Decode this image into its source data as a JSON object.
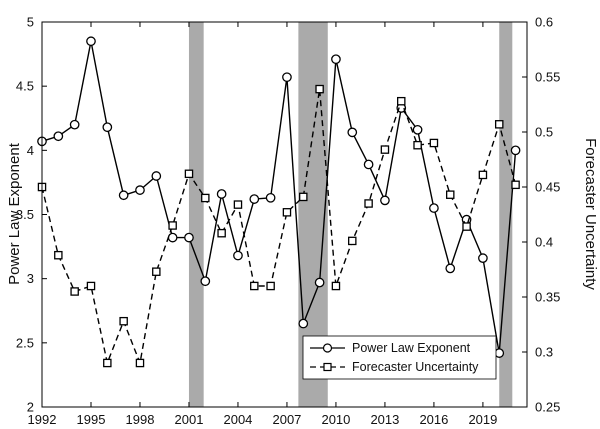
{
  "chart_data": {
    "type": "line",
    "ylabel": "Power Law Exponent",
    "y2label": "Forecaster Uncertainty",
    "xlim": [
      1992,
      2021.7
    ],
    "ylim": [
      2,
      5
    ],
    "y2lim": [
      0.25,
      0.6
    ],
    "xticks": [
      1992,
      1995,
      1998,
      2001,
      2004,
      2007,
      2010,
      2013,
      2016,
      2019
    ],
    "yticks": [
      2,
      2.5,
      3,
      3.5,
      4,
      4.5,
      5
    ],
    "y2ticks": [
      0.25,
      0.3,
      0.35,
      0.4,
      0.45,
      0.5,
      0.55,
      0.6
    ],
    "shaded_periods": [
      {
        "start": 2001.0,
        "end": 2001.9
      },
      {
        "start": 2007.7,
        "end": 2009.5
      },
      {
        "start": 2020.0,
        "end": 2020.8
      }
    ],
    "legend_position": "bottom-right",
    "series": [
      {
        "name": "Power Law Exponent",
        "axis": "left",
        "line": "solid",
        "marker": "circle",
        "color": "#000000",
        "x": [
          1992,
          1993,
          1994,
          1995,
          1996,
          1997,
          1998,
          1999,
          2000,
          2001,
          2002,
          2003,
          2004,
          2005,
          2006,
          2007,
          2008,
          2009,
          2010,
          2011,
          2012,
          2013,
          2014,
          2015,
          2016,
          2017,
          2018,
          2019,
          2020,
          2021
        ],
        "values": [
          4.07,
          4.11,
          4.2,
          4.85,
          4.18,
          3.65,
          3.69,
          3.8,
          3.32,
          3.32,
          2.98,
          3.66,
          3.18,
          3.62,
          3.63,
          4.57,
          2.65,
          2.97,
          4.71,
          4.14,
          3.89,
          3.61,
          4.33,
          4.16,
          3.55,
          3.08,
          3.46,
          3.16,
          2.42,
          4.0
        ]
      },
      {
        "name": "Forecaster Uncertainty",
        "axis": "right",
        "line": "dashed",
        "marker": "square",
        "color": "#000000",
        "x": [
          1992,
          1993,
          1994,
          1995,
          1996,
          1997,
          1998,
          1999,
          2000,
          2001,
          2002,
          2003,
          2004,
          2005,
          2006,
          2007,
          2008,
          2009,
          2010,
          2011,
          2012,
          2013,
          2014,
          2015,
          2016,
          2017,
          2018,
          2019,
          2020,
          2021
        ],
        "values": [
          0.45,
          0.388,
          0.355,
          0.36,
          0.29,
          0.328,
          0.29,
          0.373,
          0.415,
          0.462,
          0.44,
          0.408,
          0.434,
          0.36,
          0.36,
          0.427,
          0.441,
          0.539,
          0.36,
          0.401,
          0.435,
          0.484,
          0.528,
          0.488,
          0.49,
          0.443,
          0.414,
          0.461,
          0.507,
          0.452
        ]
      }
    ]
  }
}
